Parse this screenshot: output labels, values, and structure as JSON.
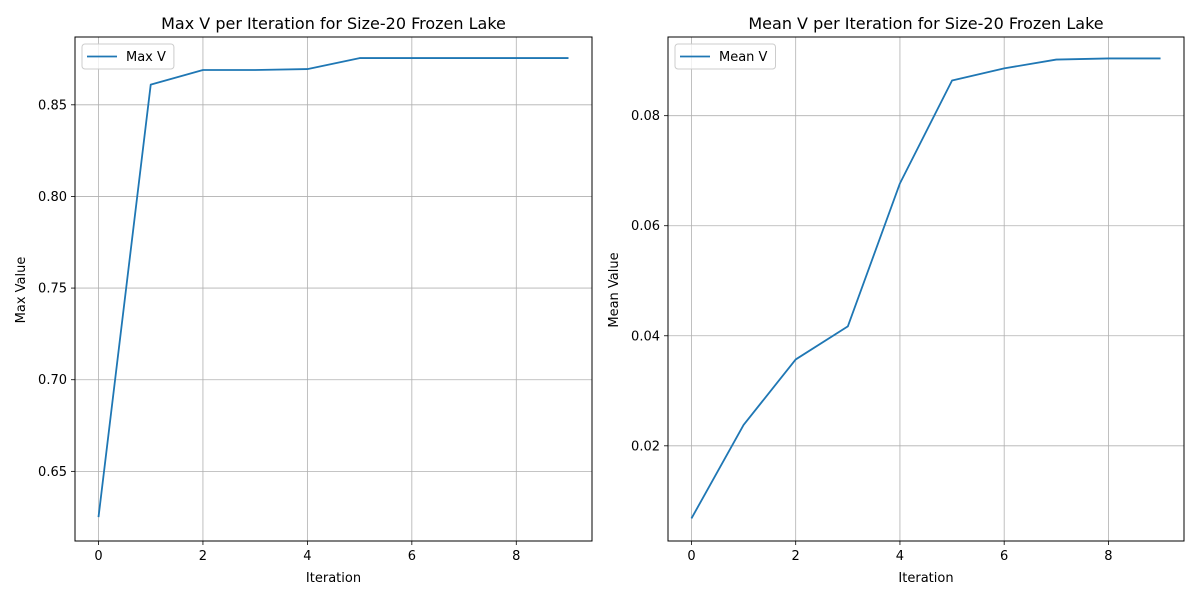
{
  "colors": {
    "series_line": "#1f77b4",
    "grid": "#b0b0b0"
  },
  "chart_data": [
    {
      "type": "line",
      "title": "Max V per Iteration for Size-20 Frozen Lake",
      "xlabel": "Iteration",
      "ylabel": "Max Value",
      "xlim": [
        -0.45,
        9.45
      ],
      "ylim": [
        0.612,
        0.887
      ],
      "xticks": [
        0,
        2,
        4,
        6,
        8
      ],
      "yticks": [
        0.65,
        0.7,
        0.75,
        0.8,
        0.85
      ],
      "ytick_labels": [
        "0.65",
        "0.70",
        "0.75",
        "0.80",
        "0.85"
      ],
      "grid": true,
      "legend": "upper-left",
      "series": [
        {
          "name": "Max V",
          "x": [
            0,
            1,
            2,
            3,
            4,
            5,
            6,
            7,
            8,
            9
          ],
          "y": [
            0.625,
            0.861,
            0.869,
            0.869,
            0.8695,
            0.8755,
            0.8755,
            0.8755,
            0.8755,
            0.8755
          ]
        }
      ]
    },
    {
      "type": "line",
      "title": "Mean V per Iteration for Size-20 Frozen Lake",
      "xlabel": "Iteration",
      "ylabel": "Mean Value",
      "xlim": [
        -0.45,
        9.45
      ],
      "ylim": [
        0.0027,
        0.0943
      ],
      "xticks": [
        0,
        2,
        4,
        6,
        8
      ],
      "yticks": [
        0.02,
        0.04,
        0.06,
        0.08
      ],
      "ytick_labels": [
        "0.02",
        "0.04",
        "0.06",
        "0.08"
      ],
      "grid": true,
      "legend": "upper-left",
      "series": [
        {
          "name": "Mean V",
          "x": [
            0,
            1,
            2,
            3,
            4,
            5,
            6,
            7,
            8,
            9
          ],
          "y": [
            0.0068,
            0.0238,
            0.0357,
            0.0417,
            0.0677,
            0.0864,
            0.0886,
            0.0902,
            0.0904,
            0.0904
          ]
        }
      ]
    }
  ]
}
